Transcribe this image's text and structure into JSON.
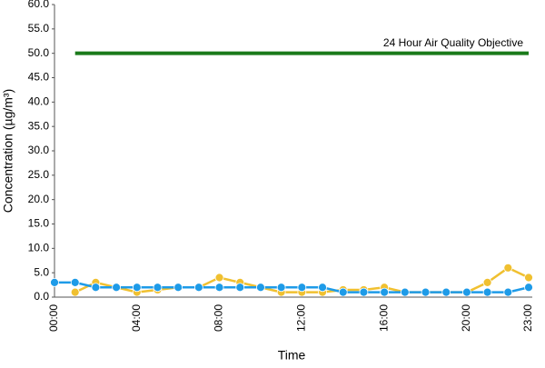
{
  "chart_data": {
    "type": "line",
    "x_label": "Time",
    "y_label": "Concentration (µg/m³)",
    "annotation": "24 Hour Air Quality Objective",
    "categories": [
      "00:00",
      null,
      null,
      null,
      "04:00",
      null,
      null,
      null,
      "08:00",
      null,
      null,
      null,
      "12:00",
      null,
      null,
      null,
      "16:00",
      null,
      null,
      null,
      "20:00",
      null,
      null,
      "23:00"
    ],
    "series": [
      {
        "color": "#1a7a1a",
        "markers": false,
        "values": [
          null,
          50,
          50,
          50,
          50,
          50,
          50,
          50,
          50,
          50,
          50,
          50,
          50,
          50,
          50,
          50,
          50,
          50,
          50,
          50,
          50,
          50,
          50,
          50
        ]
      },
      {
        "color": "#f0c030",
        "markers": true,
        "values": [
          null,
          1,
          3,
          2,
          1,
          1.5,
          2,
          2,
          4,
          3,
          2,
          1,
          1,
          1,
          1.5,
          1.5,
          2,
          1,
          1,
          1,
          1,
          3,
          6,
          4
        ]
      },
      {
        "color": "#1e9be8",
        "markers": true,
        "values": [
          3,
          3,
          2,
          2,
          2,
          2,
          2,
          2,
          2,
          2,
          2,
          2,
          2,
          2,
          1,
          1,
          1,
          1,
          1,
          1,
          1,
          1,
          1,
          2
        ]
      }
    ],
    "ylim": [
      0,
      60
    ],
    "yticks": [
      {
        "value": 0,
        "label": "0.0"
      },
      {
        "value": 5,
        "label": "5.0"
      },
      {
        "value": 10,
        "label": "10.0"
      },
      {
        "value": 15,
        "label": "15.0"
      },
      {
        "value": 20,
        "label": "20.0"
      },
      {
        "value": 25,
        "label": "25.0"
      },
      {
        "value": 30,
        "label": "30.0"
      },
      {
        "value": 35,
        "label": "35.0"
      },
      {
        "value": 40,
        "label": "40.0"
      },
      {
        "value": 45,
        "label": "45.0"
      },
      {
        "value": 50,
        "label": "50.0"
      },
      {
        "value": 55,
        "label": "55.0"
      },
      {
        "value": 60,
        "label": "60.0"
      }
    ],
    "grid": false
  }
}
